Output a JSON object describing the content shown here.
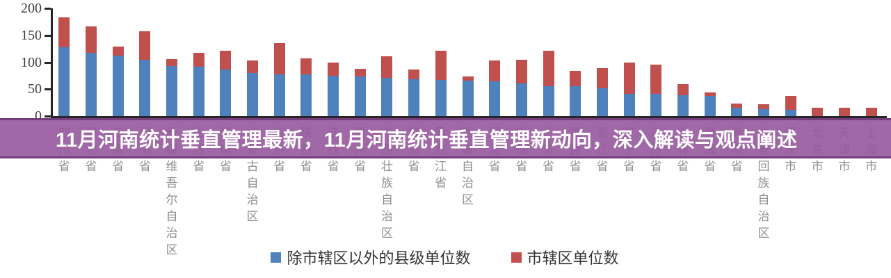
{
  "banner": {
    "text": "11月河南统计垂直管理最新，11月河南统计垂直管理新动向，深入解读与观点阐述",
    "background": "#96589c",
    "text_color": "#ffffff"
  },
  "chart_data": {
    "type": "bar",
    "stacked": true,
    "title": "",
    "xlabel": "",
    "ylabel": "",
    "ylim": [
      0,
      200
    ],
    "yticks": [
      0,
      50,
      100,
      150,
      200
    ],
    "grid": false,
    "legend_position": "bottom",
    "categories": [
      "四川省",
      "河北省",
      "云南省",
      "河南省",
      "新疆维吾尔自治区",
      "山西省",
      "湖南省",
      "内蒙古自治区",
      "山东省",
      "陕西省",
      "江西省",
      "贵州省",
      "广西壮族自治区",
      "甘肃省",
      "黑龙江省",
      "西藏自治区",
      "湖北省",
      "安徽省",
      "广东省",
      "福建省",
      "浙江省",
      "辽宁省",
      "江苏省",
      "吉林省",
      "青海省",
      "海南省",
      "宁夏回族自治区",
      "重庆市",
      "北京市",
      "天津市",
      "上海市"
    ],
    "series": [
      {
        "name": "除市辖区以外的县级单位数",
        "color": "#4f81bd",
        "values": [
          128,
          118,
          112,
          105,
          93,
          91,
          86,
          80,
          78,
          77,
          75,
          73,
          71,
          69,
          67,
          66,
          64,
          61,
          56,
          55,
          52,
          41,
          41,
          39,
          37,
          15,
          13,
          12,
          0,
          0,
          0
        ]
      },
      {
        "name": "市辖区单位数",
        "color": "#c0504d",
        "values": [
          55,
          49,
          17,
          53,
          13,
          26,
          35,
          23,
          57,
          30,
          25,
          15,
          40,
          17,
          54,
          8,
          39,
          44,
          65,
          29,
          37,
          59,
          55,
          21,
          7,
          8,
          9,
          26,
          16,
          16,
          16
        ]
      }
    ]
  }
}
